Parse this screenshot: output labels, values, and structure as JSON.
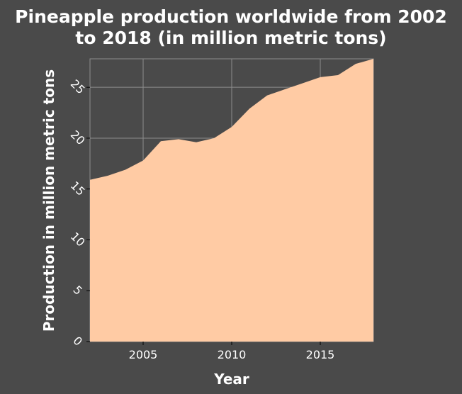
{
  "chart_data": {
    "type": "area",
    "title_lines": [
      "Pineapple production worldwide from 2002",
      "to 2018 (in million metric tons)"
    ],
    "xlabel": "Year",
    "ylabel": "Production in million metric tons",
    "x": [
      2002,
      2003,
      2004,
      2005,
      2006,
      2007,
      2008,
      2009,
      2010,
      2011,
      2012,
      2013,
      2014,
      2015,
      2016,
      2017,
      2018
    ],
    "series": [
      {
        "values": [
          15.9,
          16.3,
          16.9,
          17.8,
          19.7,
          19.9,
          19.6,
          20.0,
          21.1,
          22.9,
          24.2,
          24.8,
          25.4,
          26.0,
          26.2,
          27.3,
          27.8
        ]
      }
    ],
    "xlim": [
      2002,
      2018
    ],
    "ylim": [
      0,
      27.8
    ],
    "xticks": [
      2005,
      2010,
      2015
    ],
    "yticks": [
      0,
      5,
      10,
      15,
      20,
      25
    ],
    "grid": true,
    "colors": {
      "background": "#4a4a4a",
      "area_fill": "#ffcba4",
      "grid": "#8c8c8c",
      "text": "#ffffff"
    }
  }
}
